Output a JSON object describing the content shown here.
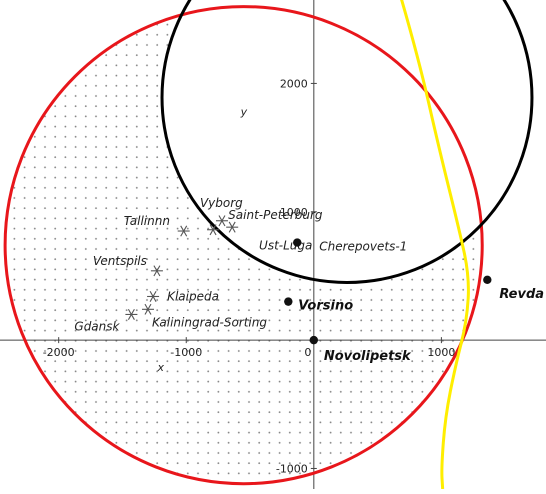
{
  "chart_data": {
    "type": "scatter",
    "title": "",
    "xlabel": "x",
    "ylabel": "y",
    "xlim": [
      -2460,
      1820
    ],
    "ylim": [
      -1160,
      2650
    ],
    "grid": false,
    "x_ticks": [
      {
        "value": -2000,
        "label": "-2000"
      },
      {
        "value": -1000,
        "label": "-1000"
      },
      {
        "value": 0,
        "label": "0"
      },
      {
        "value": 1000,
        "label": "1000"
      }
    ],
    "y_ticks": [
      {
        "value": 2000,
        "label": "2000"
      },
      {
        "value": 1000,
        "label": "1000"
      },
      {
        "value": -1000,
        "label": "-1000"
      }
    ],
    "ports": [
      {
        "label": "Vyborg",
        "x": -720,
        "y": 930
      },
      {
        "label": "Saint-Peterburg",
        "x": -640,
        "y": 880
      },
      {
        "label": "Ust-Luga",
        "x": -790,
        "y": 860
      },
      {
        "label": "Tallinnn",
        "x": -1020,
        "y": 850
      },
      {
        "label": "Ventspils",
        "x": -1230,
        "y": 540
      },
      {
        "label": "Klaipeda",
        "x": -1260,
        "y": 340
      },
      {
        "label": "Kaliningrad-Sorting",
        "x": -1300,
        "y": 240
      },
      {
        "label": "Gdansk",
        "x": -1430,
        "y": 200
      }
    ],
    "plants": [
      {
        "label": "Cherepovets-1",
        "x": -130,
        "y": 760,
        "bold": false
      },
      {
        "label": "Vorsino",
        "x": -200,
        "y": 300,
        "bold": true
      },
      {
        "label": "Novolipetsk",
        "x": 0,
        "y": 0,
        "bold": true
      },
      {
        "label": "Revda",
        "x": 1360,
        "y": 470,
        "bold": true
      }
    ],
    "red_circle": {
      "cx": -550,
      "cy": 740,
      "r": 1870,
      "color": "#e8161b"
    },
    "black_circle": {
      "cx": 260,
      "cy": 1890,
      "r": 1450,
      "color": "#000000"
    },
    "yellow_curve": {
      "color": "#ffee00",
      "points": [
        [
          680,
          2680
        ],
        [
          820,
          2200
        ],
        [
          980,
          1500
        ],
        [
          1130,
          900
        ],
        [
          1220,
          500
        ],
        [
          1200,
          150
        ],
        [
          1110,
          -200
        ],
        [
          1030,
          -600
        ],
        [
          1000,
          -1000
        ],
        [
          1010,
          -1160
        ]
      ]
    },
    "dotted_region": "interior of red circle below the black circle",
    "dot_color": "#888888"
  }
}
